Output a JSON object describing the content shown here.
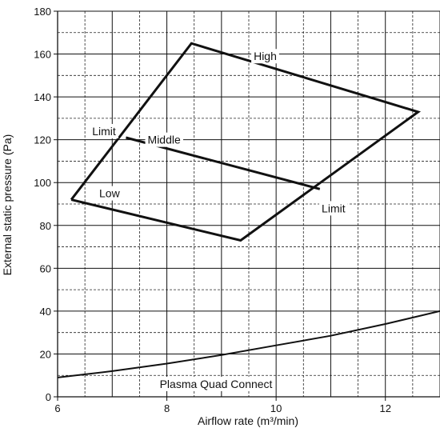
{
  "chart_data": {
    "type": "line",
    "title": "",
    "xlabel": "Airflow rate (m³/min)",
    "ylabel": "External static pressure (Pa)",
    "xlim": [
      6,
      13
    ],
    "ylim": [
      0,
      180
    ],
    "x_ticks": [
      6,
      8,
      10,
      12
    ],
    "y_ticks": [
      0,
      20,
      40,
      60,
      80,
      100,
      120,
      140,
      160,
      180
    ],
    "grid": {
      "major_solid": true,
      "minor_dashed": true,
      "x_minor_step": 0.5,
      "y_minor_step": 10
    },
    "series": [
      {
        "values": [
          {
            "x": 6.25,
            "y": 92
          },
          {
            "x": 8.45,
            "y": 165
          },
          {
            "x": 12.6,
            "y": 133
          },
          {
            "x": 9.35,
            "y": 73
          },
          {
            "x": 6.25,
            "y": 92
          }
        ]
      },
      {
        "values": [
          {
            "x": 7.25,
            "y": 121
          },
          {
            "x": 10.8,
            "y": 97
          }
        ]
      },
      {
        "values": [
          {
            "x": 6.0,
            "y": 9
          },
          {
            "x": 7.0,
            "y": 12
          },
          {
            "x": 8.0,
            "y": 15.5
          },
          {
            "x": 9.0,
            "y": 19.5
          },
          {
            "x": 10.0,
            "y": 24
          },
          {
            "x": 11.0,
            "y": 28.5
          },
          {
            "x": 12.0,
            "y": 34
          },
          {
            "x": 13.0,
            "y": 40
          }
        ]
      }
    ],
    "annotations": [
      {
        "text": "High",
        "x": 9.8,
        "y": 159
      },
      {
        "text": "Middle",
        "x": 7.95,
        "y": 120
      },
      {
        "text": "Low",
        "x": 6.95,
        "y": 95
      },
      {
        "text": "Limit",
        "x": 6.85,
        "y": 124
      },
      {
        "text": "Limit",
        "x": 11.05,
        "y": 88
      },
      {
        "text": "Plasma Quad Connect",
        "x": 8.9,
        "y": 6
      }
    ]
  }
}
